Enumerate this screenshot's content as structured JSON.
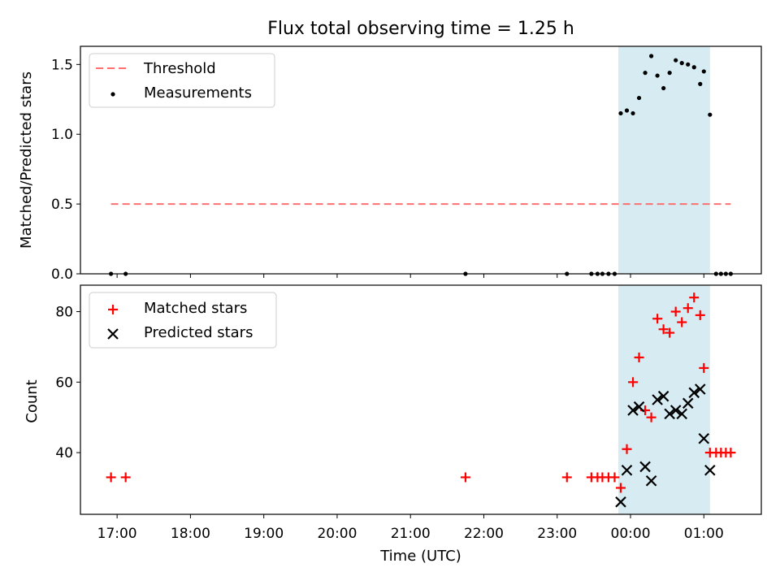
{
  "chart_data": [
    {
      "type": "scatter",
      "title": "Flux total observing time = 1.25 h",
      "xlabel": "",
      "ylabel": "Matched/Predicted stars",
      "ylim": [
        0,
        1.63
      ],
      "yticks": [
        "0.0",
        "0.5",
        "1.0",
        "1.5"
      ],
      "legend_position": "top-left",
      "shaded_interval": [
        "23:50",
        "01:05"
      ],
      "shaded_color": "#add8e6",
      "threshold": {
        "name": "Threshold",
        "value": 0.5,
        "x_range": [
          "16:55",
          "01:22"
        ],
        "color": "#ff7070"
      },
      "series": [
        {
          "name": "Measurements",
          "marker": "dot",
          "color": "#000000",
          "points": [
            [
              "16:55",
              0.0
            ],
            [
              "17:07",
              0.0
            ],
            [
              "21:45",
              0.0
            ],
            [
              "23:08",
              0.0
            ],
            [
              "23:28",
              0.0
            ],
            [
              "23:33",
              0.0
            ],
            [
              "23:37",
              0.0
            ],
            [
              "23:42",
              0.0
            ],
            [
              "23:47",
              0.0
            ],
            [
              "23:52",
              1.15
            ],
            [
              "23:57",
              1.17
            ],
            [
              "00:02",
              1.15
            ],
            [
              "00:07",
              1.26
            ],
            [
              "00:12",
              1.44
            ],
            [
              "00:17",
              1.56
            ],
            [
              "00:22",
              1.42
            ],
            [
              "00:27",
              1.33
            ],
            [
              "00:32",
              1.44
            ],
            [
              "00:37",
              1.53
            ],
            [
              "00:42",
              1.51
            ],
            [
              "00:47",
              1.5
            ],
            [
              "00:52",
              1.48
            ],
            [
              "00:57",
              1.36
            ],
            [
              "01:00",
              1.45
            ],
            [
              "01:05",
              1.14
            ],
            [
              "01:10",
              0.0
            ],
            [
              "01:14",
              0.0
            ],
            [
              "01:18",
              0.0
            ],
            [
              "01:22",
              0.0
            ]
          ]
        }
      ]
    },
    {
      "type": "scatter",
      "title": "",
      "xlabel": "Time (UTC)",
      "ylabel": "Count",
      "ylim": [
        22.5,
        87.5
      ],
      "yticks": [
        "40",
        "60",
        "80"
      ],
      "xticks": [
        "17:00",
        "18:00",
        "19:00",
        "20:00",
        "21:00",
        "22:00",
        "23:00",
        "00:00",
        "01:00"
      ],
      "xlim": [
        "16:30",
        "01:47"
      ],
      "legend_position": "top-left",
      "shaded_interval": [
        "23:50",
        "01:05"
      ],
      "shaded_color": "#add8e6",
      "series": [
        {
          "name": "Matched stars",
          "marker": "plus",
          "color": "#ff0000",
          "points": [
            [
              "16:55",
              33
            ],
            [
              "17:07",
              33
            ],
            [
              "21:45",
              33
            ],
            [
              "23:08",
              33
            ],
            [
              "23:28",
              33
            ],
            [
              "23:33",
              33
            ],
            [
              "23:37",
              33
            ],
            [
              "23:42",
              33
            ],
            [
              "23:47",
              33
            ],
            [
              "23:52",
              30
            ],
            [
              "23:57",
              41
            ],
            [
              "00:02",
              60
            ],
            [
              "00:07",
              67
            ],
            [
              "00:12",
              52
            ],
            [
              "00:17",
              50
            ],
            [
              "00:22",
              78
            ],
            [
              "00:27",
              75
            ],
            [
              "00:32",
              74
            ],
            [
              "00:37",
              80
            ],
            [
              "00:42",
              77
            ],
            [
              "00:47",
              81
            ],
            [
              "00:52",
              84
            ],
            [
              "00:57",
              79
            ],
            [
              "01:00",
              64
            ],
            [
              "01:05",
              40
            ],
            [
              "01:10",
              40
            ],
            [
              "01:14",
              40
            ],
            [
              "01:18",
              40
            ],
            [
              "01:22",
              40
            ]
          ]
        },
        {
          "name": "Predicted stars",
          "marker": "x",
          "color": "#000000",
          "points": [
            [
              "23:52",
              26
            ],
            [
              "23:57",
              35
            ],
            [
              "00:02",
              52
            ],
            [
              "00:07",
              53
            ],
            [
              "00:12",
              36
            ],
            [
              "00:17",
              32
            ],
            [
              "00:22",
              55
            ],
            [
              "00:27",
              56
            ],
            [
              "00:32",
              51
            ],
            [
              "00:37",
              52
            ],
            [
              "00:42",
              51
            ],
            [
              "00:47",
              54
            ],
            [
              "00:52",
              57
            ],
            [
              "00:57",
              58
            ],
            [
              "01:00",
              44
            ],
            [
              "01:05",
              35
            ]
          ]
        }
      ]
    }
  ]
}
